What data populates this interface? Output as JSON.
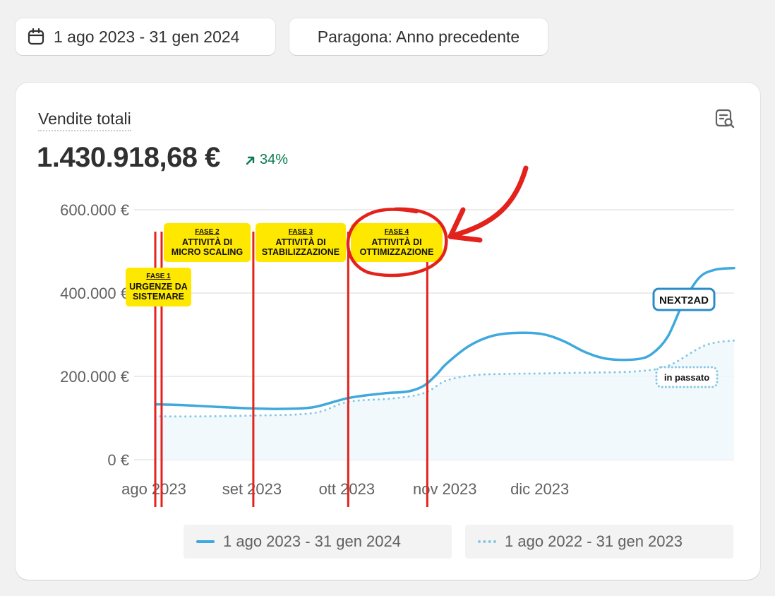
{
  "header": {
    "date_range_label": "1 ago 2023 - 31 gen 2024",
    "compare_label": "Paragona: Anno precedente"
  },
  "card": {
    "title": "Vendite totali",
    "value": "1.430.918,68 €",
    "change": "34%",
    "change_color": "#0c7a4d"
  },
  "icons": {
    "date": "calendar-icon",
    "report": "report-search-icon",
    "change": "arrow-up-right-icon"
  },
  "chart_data": {
    "type": "line",
    "title": "",
    "xlabel": "",
    "ylabel": "",
    "y_ticks": [
      "600.000 €",
      "400.000 €",
      "200.000 €",
      "0 €"
    ],
    "y_tick_values": [
      600000,
      400000,
      200000,
      0
    ],
    "ylim": [
      0,
      600000
    ],
    "x_ticks": [
      "ago 2023",
      "set 2023",
      "ott 2023",
      "nov 2023",
      "dic 2023"
    ],
    "xlim": [
      "2023-08-01",
      "2024-01-31"
    ],
    "grid": true,
    "legend_position": "bottom",
    "series": [
      {
        "name": "1 ago 2023 - 31 gen 2024",
        "style": "solid",
        "color": "#3fa9dd",
        "points": [
          [
            "2023-08-01",
            133000
          ],
          [
            "2023-08-10",
            131000
          ],
          [
            "2023-08-20",
            127000
          ],
          [
            "2023-09-01",
            123000
          ],
          [
            "2023-09-10",
            122000
          ],
          [
            "2023-09-20",
            126000
          ],
          [
            "2023-10-01",
            148000
          ],
          [
            "2023-10-12",
            159000
          ],
          [
            "2023-10-20",
            164000
          ],
          [
            "2023-10-25",
            178000
          ],
          [
            "2023-10-29",
            205000
          ],
          [
            "2023-11-01",
            230000
          ],
          [
            "2023-11-08",
            272000
          ],
          [
            "2023-11-15",
            296000
          ],
          [
            "2023-11-22",
            304000
          ],
          [
            "2023-12-01",
            302000
          ],
          [
            "2023-12-08",
            285000
          ],
          [
            "2023-12-15",
            258000
          ],
          [
            "2023-12-22",
            242000
          ],
          [
            "2023-12-31",
            241000
          ],
          [
            "2024-01-05",
            254000
          ],
          [
            "2024-01-10",
            295000
          ],
          [
            "2024-01-15",
            378000
          ],
          [
            "2024-01-20",
            437000
          ],
          [
            "2024-01-25",
            456000
          ],
          [
            "2024-01-31",
            460000
          ]
        ]
      },
      {
        "name": "1 ago 2022 - 31 gen 2023",
        "style": "dotted",
        "color": "#86c7e4",
        "points": [
          [
            "2023-08-01",
            104000
          ],
          [
            "2023-08-15",
            104000
          ],
          [
            "2023-09-01",
            106000
          ],
          [
            "2023-09-20",
            112000
          ],
          [
            "2023-10-01",
            139000
          ],
          [
            "2023-10-15",
            147000
          ],
          [
            "2023-10-25",
            160000
          ],
          [
            "2023-11-01",
            190000
          ],
          [
            "2023-11-10",
            203000
          ],
          [
            "2023-11-20",
            206000
          ],
          [
            "2023-12-01",
            207000
          ],
          [
            "2023-12-15",
            209000
          ],
          [
            "2023-12-31",
            212000
          ],
          [
            "2024-01-10",
            225000
          ],
          [
            "2024-01-20",
            268000
          ],
          [
            "2024-01-25",
            281000
          ],
          [
            "2024-01-31",
            286000
          ]
        ]
      }
    ],
    "phase_lines": [
      "2023-08-01",
      "2023-08-03",
      "2023-09-01",
      "2023-10-01",
      "2023-10-26"
    ],
    "phase_line_color": "#e3221c",
    "phase_labels": [
      {
        "phase": "FASE 1",
        "lines": [
          "URGENZE DA",
          "SISTEMARE"
        ]
      },
      {
        "phase": "FASE 2",
        "lines": [
          "ATTIVITÀ DI",
          "MICRO SCALING"
        ]
      },
      {
        "phase": "FASE 3",
        "lines": [
          "ATTIVITÀ DI",
          "STABILIZZAZIONE"
        ]
      },
      {
        "phase": "FASE 4",
        "lines": [
          "ATTIVITÀ DI",
          "OTTIMIZZAZIONE"
        ]
      }
    ],
    "phase_label_color": "#ffe800",
    "annotations": [
      {
        "text": "NEXT2AD",
        "style": "badge-solid"
      },
      {
        "text": "in passato",
        "style": "badge-dotted"
      }
    ]
  }
}
